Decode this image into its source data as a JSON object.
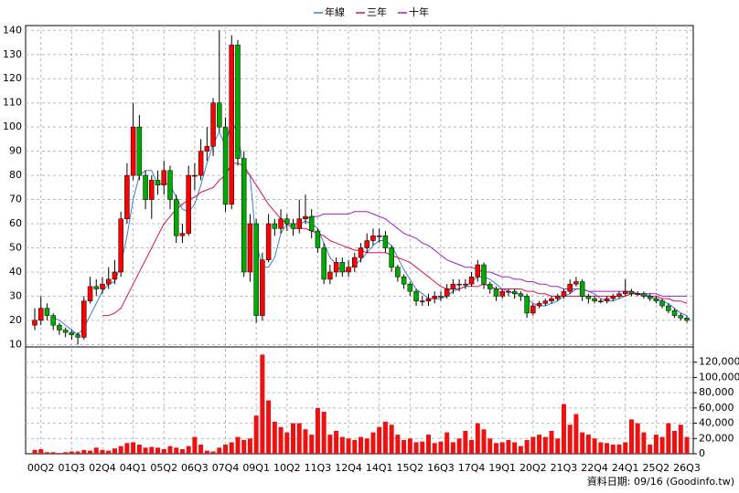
{
  "chart_data": {
    "type": "candlestick",
    "categories": [
      null,
      "00Q2",
      null,
      null,
      null,
      null,
      "01Q3",
      null,
      null,
      null,
      null,
      "02Q4",
      null,
      null,
      null,
      null,
      "04Q1",
      null,
      null,
      null,
      null,
      "05Q2",
      null,
      null,
      null,
      null,
      "06Q3",
      null,
      null,
      null,
      null,
      "07Q4",
      null,
      null,
      null,
      null,
      "09Q1",
      null,
      null,
      null,
      null,
      "10Q2",
      null,
      null,
      null,
      null,
      "11Q3",
      null,
      null,
      null,
      null,
      "12Q4",
      null,
      null,
      null,
      null,
      "14Q1",
      null,
      null,
      null,
      null,
      "15Q2",
      null,
      null,
      null,
      null,
      "16Q3",
      null,
      null,
      null,
      null,
      "17Q4",
      null,
      null,
      null,
      null,
      "19Q1",
      null,
      null,
      null,
      null,
      "20Q2",
      null,
      null,
      null,
      null,
      "21Q3",
      null,
      null,
      null,
      null,
      "22Q4",
      null,
      null,
      null,
      null,
      "24Q1",
      null,
      null,
      null,
      null,
      "25Q2",
      null,
      null,
      null,
      null,
      "26Q3"
    ],
    "open": [
      18,
      20,
      25,
      22,
      18,
      16,
      15,
      14,
      13,
      28,
      34,
      33,
      35,
      37,
      40,
      62,
      80,
      100,
      80,
      70,
      78,
      76,
      82,
      70,
      55,
      56,
      80,
      80,
      90,
      92,
      110,
      100,
      68,
      134,
      87,
      40,
      60,
      22,
      45,
      60,
      58,
      62,
      60,
      58,
      62,
      63,
      57,
      50,
      37,
      40,
      44,
      40,
      42,
      46,
      50,
      53,
      55,
      55,
      50,
      42,
      38,
      35,
      32,
      28,
      28,
      29,
      30,
      30,
      33,
      35,
      35,
      35,
      38,
      43,
      35,
      33,
      30,
      32,
      32,
      31,
      30,
      23,
      26,
      27,
      28,
      29,
      30,
      32,
      35,
      36,
      30,
      29,
      28,
      28,
      29,
      30,
      31,
      32,
      31,
      31,
      30,
      29,
      28,
      26,
      24,
      22,
      21
    ],
    "high": [
      25,
      30,
      27,
      23,
      19,
      17,
      16,
      15,
      30,
      38,
      37,
      38,
      42,
      45,
      65,
      85,
      110,
      105,
      82,
      80,
      82,
      86,
      84,
      72,
      60,
      84,
      85,
      95,
      100,
      112,
      140,
      104,
      138,
      136,
      90,
      64,
      62,
      48,
      64,
      62,
      66,
      64,
      62,
      70,
      72,
      66,
      58,
      52,
      43,
      46,
      46,
      45,
      48,
      52,
      56,
      58,
      58,
      57,
      51,
      43,
      39,
      36,
      33,
      30,
      31,
      32,
      32,
      35,
      37,
      37,
      37,
      40,
      45,
      44,
      36,
      34,
      33,
      33,
      33,
      32,
      31,
      27,
      28,
      29,
      30,
      31,
      33,
      37,
      38,
      37,
      31,
      30,
      29,
      30,
      31,
      32,
      37,
      33,
      32,
      32,
      31,
      30,
      29,
      27,
      25,
      23,
      22
    ],
    "low": [
      16,
      18,
      20,
      16,
      14,
      13,
      12,
      10,
      12,
      27,
      30,
      31,
      33,
      35,
      38,
      60,
      78,
      78,
      66,
      62,
      72,
      72,
      66,
      52,
      52,
      55,
      74,
      78,
      86,
      88,
      98,
      65,
      66,
      84,
      38,
      36,
      19,
      20,
      44,
      55,
      56,
      57,
      55,
      56,
      60,
      54,
      48,
      35,
      35,
      38,
      38,
      38,
      40,
      44,
      48,
      51,
      52,
      48,
      40,
      36,
      33,
      30,
      26,
      26,
      26,
      27,
      28,
      29,
      31,
      32,
      33,
      34,
      36,
      33,
      31,
      28,
      29,
      30,
      29,
      28,
      21,
      22,
      25,
      26,
      27,
      28,
      29,
      31,
      34,
      28,
      27,
      27,
      27,
      27,
      28,
      29,
      30,
      30,
      30,
      29,
      28,
      27,
      25,
      23,
      21,
      20,
      19
    ],
    "close": [
      20,
      25,
      22,
      18,
      16,
      15,
      14,
      13,
      28,
      34,
      33,
      35,
      37,
      40,
      62,
      80,
      100,
      80,
      70,
      78,
      76,
      82,
      70,
      55,
      56,
      80,
      80,
      90,
      92,
      110,
      100,
      68,
      134,
      87,
      40,
      60,
      22,
      45,
      60,
      58,
      62,
      60,
      58,
      62,
      63,
      57,
      50,
      37,
      40,
      44,
      40,
      42,
      46,
      50,
      53,
      55,
      55,
      50,
      42,
      38,
      35,
      32,
      28,
      28,
      29,
      30,
      30,
      33,
      35,
      35,
      35,
      38,
      43,
      35,
      33,
      30,
      32,
      32,
      31,
      30,
      23,
      26,
      27,
      28,
      29,
      30,
      32,
      35,
      36,
      30,
      29,
      28,
      28,
      29,
      30,
      31,
      32,
      31,
      31,
      30,
      29,
      28,
      26,
      24,
      22,
      21,
      20
    ],
    "up_color": "#ff0000",
    "down_color": "#00aa00",
    "series": [
      {
        "name": "年線",
        "color": "#3a7fd5",
        "values": [
          null,
          null,
          null,
          21,
          20,
          18,
          16,
          14,
          17,
          22,
          27,
          32,
          35,
          36,
          43,
          55,
          70,
          80,
          82,
          82,
          76,
          77,
          76,
          71,
          66,
          65,
          68,
          76,
          85,
          93,
          98,
          92,
          103,
          97,
          82,
          80,
          52,
          42,
          42,
          46,
          56,
          60,
          60,
          60,
          61,
          60,
          58,
          52,
          46,
          43,
          40,
          41,
          43,
          45,
          48,
          51,
          53,
          53,
          51,
          46,
          41,
          37,
          33,
          31,
          29,
          29,
          29,
          30,
          32,
          33,
          34,
          36,
          38,
          38,
          37,
          35,
          33,
          32,
          31,
          31,
          29,
          27,
          26,
          26,
          27,
          28,
          30,
          31,
          33,
          33,
          32,
          31,
          29,
          28,
          28,
          29,
          30,
          31,
          31,
          31,
          30,
          29,
          28,
          27,
          25,
          23,
          22
        ]
      },
      {
        "name": "三年",
        "color": "#dd1155",
        "values": [
          null,
          null,
          null,
          null,
          null,
          null,
          null,
          null,
          null,
          null,
          null,
          22,
          22,
          23,
          25,
          30,
          35,
          40,
          45,
          50,
          55,
          60,
          63,
          66,
          68,
          70,
          71,
          73,
          74,
          75,
          78,
          80,
          85,
          85,
          84,
          80,
          76,
          72,
          68,
          65,
          62,
          60,
          58,
          58,
          58,
          57,
          56,
          55,
          53,
          52,
          51,
          50,
          49,
          49,
          48,
          48,
          48,
          48,
          47,
          46,
          45,
          44,
          42,
          40,
          38,
          36,
          34,
          33,
          33,
          33,
          34,
          34,
          34,
          35,
          34,
          33,
          33,
          33,
          33,
          33,
          32,
          32,
          31,
          31,
          30,
          30,
          30,
          30,
          30,
          30,
          30,
          30,
          30,
          30,
          30,
          30,
          30,
          31,
          31,
          30,
          30,
          30,
          29,
          29,
          28,
          28,
          27
        ]
      },
      {
        "name": "十年",
        "color": "#9922cc",
        "values": [
          null,
          null,
          null,
          null,
          null,
          null,
          null,
          null,
          null,
          null,
          null,
          null,
          null,
          null,
          null,
          null,
          null,
          null,
          null,
          null,
          null,
          null,
          null,
          null,
          null,
          null,
          null,
          null,
          null,
          null,
          null,
          null,
          null,
          null,
          null,
          null,
          null,
          null,
          null,
          null,
          null,
          null,
          null,
          null,
          62,
          63,
          63,
          64,
          64,
          64,
          64,
          64,
          65,
          65,
          65,
          64,
          63,
          62,
          60,
          58,
          56,
          55,
          54,
          52,
          51,
          49,
          47,
          45,
          44,
          43,
          42,
          42,
          41,
          40,
          40,
          39,
          38,
          38,
          37,
          37,
          36,
          36,
          35,
          35,
          34,
          34,
          33,
          33,
          33,
          33,
          32,
          32,
          32,
          32,
          32,
          32,
          32,
          32,
          31,
          31,
          31,
          31,
          30,
          30,
          30,
          30,
          30
        ]
      }
    ],
    "ylim": [
      9,
      142
    ],
    "yticks": [
      10,
      20,
      30,
      40,
      50,
      60,
      70,
      80,
      90,
      100,
      110,
      120,
      130,
      140
    ],
    "volume": {
      "color": "#ee1111",
      "values": [
        5000,
        6000,
        2000,
        2000,
        1000,
        2000,
        3000,
        3000,
        5000,
        4000,
        8000,
        5000,
        4000,
        7000,
        10000,
        14000,
        15000,
        12000,
        8000,
        9000,
        8000,
        6000,
        10000,
        8000,
        6000,
        10000,
        22000,
        12000,
        4000,
        3000,
        8000,
        12000,
        15000,
        22000,
        18000,
        20000,
        50000,
        130000,
        70000,
        42000,
        35000,
        28000,
        40000,
        40000,
        32000,
        25000,
        60000,
        55000,
        25000,
        30000,
        22000,
        20000,
        18000,
        22000,
        20000,
        28000,
        35000,
        42000,
        38000,
        25000,
        18000,
        20000,
        15000,
        16000,
        25000,
        14000,
        16000,
        28000,
        15000,
        20000,
        30000,
        18000,
        40000,
        32000,
        20000,
        14000,
        15000,
        18000,
        15000,
        10000,
        18000,
        22000,
        25000,
        22000,
        30000,
        20000,
        65000,
        38000,
        52000,
        28000,
        25000,
        20000,
        15000,
        14000,
        12000,
        12000,
        15000,
        45000,
        40000,
        28000,
        12000,
        25000,
        22000,
        40000,
        30000,
        38000,
        22000
      ],
      "ylim": [
        0,
        140000
      ],
      "yticks": [
        0,
        {
          "value": 20000,
          "label": "20,000"
        },
        {
          "value": 40000,
          "label": "40,000"
        },
        {
          "value": 60000,
          "label": "60,000"
        },
        {
          "value": 80000,
          "label": "80,000"
        },
        {
          "value": 100000,
          "label": "100,000"
        },
        {
          "value": 120000,
          "label": "120,000"
        }
      ]
    },
    "grid": true,
    "source_note": "資料日期: 09/16 (Goodinfo.tw)"
  }
}
